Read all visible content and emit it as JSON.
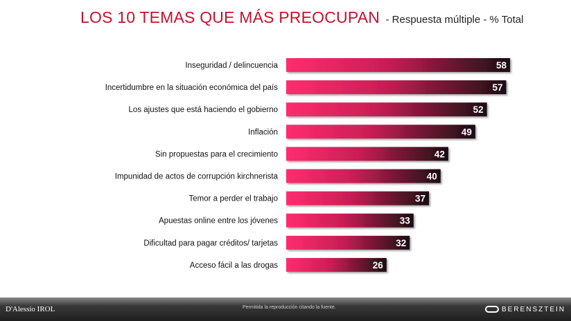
{
  "title": {
    "main": "LOS 10 TEMAS QUE MÁS PREOCUPAN",
    "subtitle": "- Respuesta múltiple - % Total"
  },
  "chart_data": {
    "type": "bar",
    "orientation": "horizontal",
    "categories": [
      "Inseguridad / delincuencia",
      "Incertidumbre en la situación económica del país",
      "Los ajustes que está haciendo el gobierno",
      "Inflación",
      "Sin propuestas para el crecimiento",
      "Impunidad de actos de corrupción kirchnerista",
      "Temor a perder el trabajo",
      "Apuestas online entre los jóvenes",
      "Dificultad para pagar créditos/ tarjetas",
      "Acceso fácil a las drogas"
    ],
    "values": [
      58,
      57,
      52,
      49,
      42,
      40,
      37,
      33,
      32,
      26
    ],
    "xlim": [
      0,
      60
    ],
    "grid": false,
    "legend": "none",
    "colors": {
      "bar_start": "#ff2d6f",
      "bar_end": "#1a0f12"
    }
  },
  "footer": {
    "left_logo": "D'Alessio IROL",
    "note": "Permitida la reproducción citando la fuente.",
    "right_logo": "BERENSZTEIN"
  }
}
